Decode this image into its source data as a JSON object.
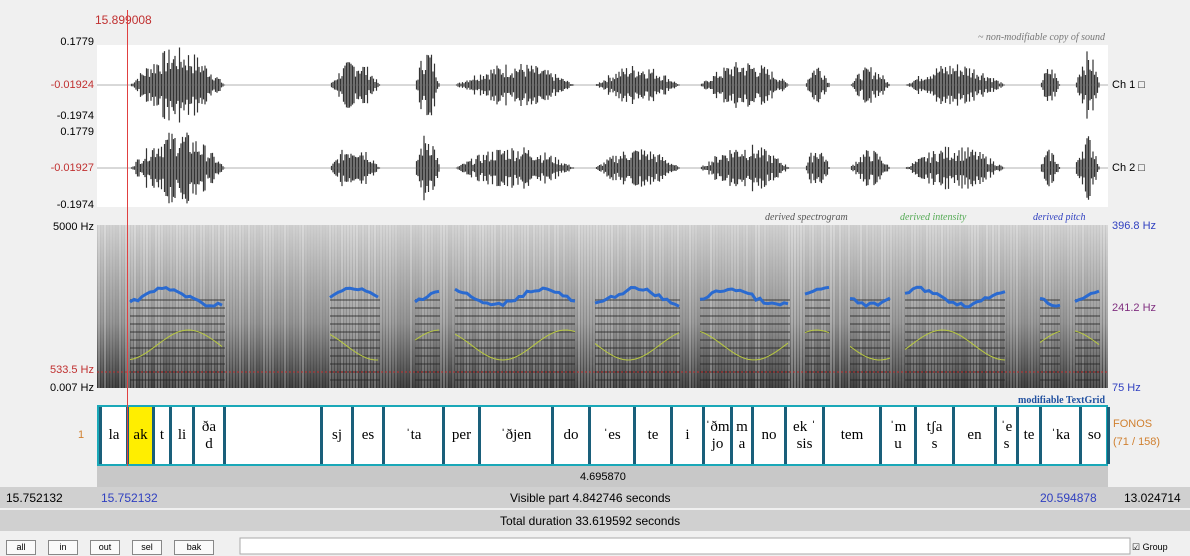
{
  "cursor_time": "15.899008",
  "sound": {
    "note": "~ non-modifiable copy of sound",
    "ch1": {
      "max": "0.1779",
      "cursor": "-0.01924",
      "min": "-0.1974",
      "label": "Ch 1 □"
    },
    "ch2": {
      "max": "0.1779",
      "cursor": "-0.01927",
      "min": "-0.1974",
      "label": "Ch 2 □"
    }
  },
  "spectrogram": {
    "legend": [
      "derived spectrogram",
      "derived intensity",
      "derived pitch"
    ],
    "top": "5000 Hz",
    "cursor": "533.5 Hz",
    "bottom": "0.007 Hz",
    "pitch_top": "396.8 Hz",
    "pitch_cursor": "241.2 Hz",
    "pitch_bottom": "75 Hz"
  },
  "textgrid": {
    "title": "modifiable TextGrid",
    "tier_number": "1",
    "tier_name": "FONOS",
    "tier_count": "(71 / 158)",
    "intervals": [
      "la",
      "ak",
      "t",
      "li",
      "ða\nd",
      "sj",
      "es",
      "ˈta",
      "per",
      "ˈðjen",
      "do",
      "ˈes",
      "te",
      "i",
      "ˈðm\njo",
      "m\na",
      "no",
      "ek ˈ\nsis",
      "tem",
      "ˈm\nu",
      "tʃa\ns",
      "en",
      "ˈe\ns",
      "te",
      "ˈka",
      "so"
    ]
  },
  "selection_duration": "4.695870",
  "visible": {
    "start_outer": "15.752132",
    "start": "15.752132",
    "text": "Visible part 4.842746 seconds",
    "end": "20.594878",
    "end_outer": "13.024714"
  },
  "total": "Total duration 33.619592 seconds",
  "buttons": [
    "all",
    "in",
    "out",
    "sel",
    "bak"
  ],
  "group": "Group"
}
